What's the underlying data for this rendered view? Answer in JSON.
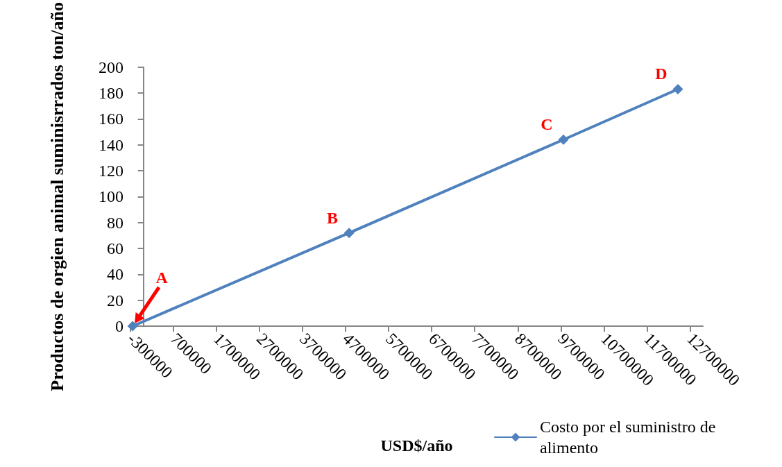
{
  "chart_data": {
    "type": "line",
    "xlabel": "USD$/año",
    "ylabel": "Productos de orgien animal suminisrrados ton/año",
    "x": [
      -250000,
      4780000,
      9760000,
      12420000
    ],
    "series": [
      {
        "name": "Costo por el suministro de alimento",
        "color": "#4f81bd",
        "values": [
          0,
          72,
          144,
          183
        ]
      }
    ],
    "xlim": [
      -300000,
      13000000
    ],
    "xticks": [
      -300000,
      700000,
      1700000,
      2700000,
      3700000,
      4700000,
      5700000,
      6700000,
      7700000,
      8700000,
      9700000,
      10700000,
      11700000,
      12700000
    ],
    "ylim": [
      0,
      200
    ],
    "yticks": [
      0,
      20,
      40,
      60,
      80,
      100,
      120,
      140,
      160,
      180,
      200
    ],
    "marker": "diamond",
    "line_style": "solid",
    "grid": false,
    "legend": "bottom right",
    "annotations": [
      {
        "text": "A",
        "x": -250000,
        "y": 0
      },
      {
        "text": "B",
        "x": 4780000,
        "y": 72
      },
      {
        "text": "C",
        "x": 9760000,
        "y": 144
      },
      {
        "text": "D",
        "x": 12420000,
        "y": 183
      }
    ]
  }
}
